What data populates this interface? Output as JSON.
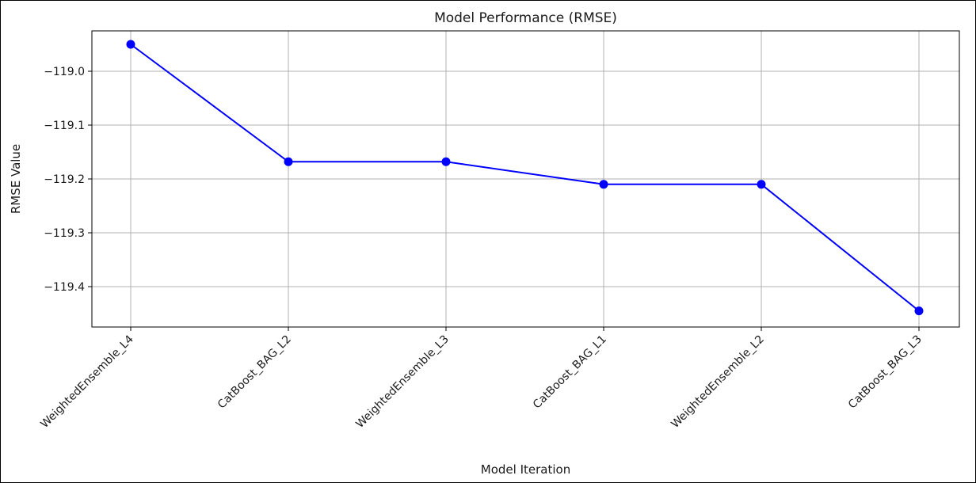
{
  "chart_data": {
    "type": "line",
    "title": "Model Performance (RMSE)",
    "xlabel": "Model Iteration",
    "ylabel": "RMSE Value",
    "categories": [
      "WeightedEnsemble_L4",
      "CatBoost_BAG_L2",
      "WeightedEnsemble_L3",
      "CatBoost_BAG_L1",
      "WeightedEnsemble_L2",
      "CatBoost_BAG_L3"
    ],
    "series": [
      {
        "values": [
          -118.95,
          -119.168,
          -119.168,
          -119.21,
          -119.21,
          -119.445
        ]
      }
    ],
    "ylim": [
      -119.475,
      -118.925
    ],
    "yticks": [
      -119.0,
      -119.1,
      -119.2,
      -119.3,
      -119.4
    ],
    "ytick_labels": [
      "−119.0",
      "−119.1",
      "−119.2",
      "−119.3",
      "−119.4"
    ],
    "grid": true,
    "line_color": "#0000ff",
    "marker": "circle"
  }
}
